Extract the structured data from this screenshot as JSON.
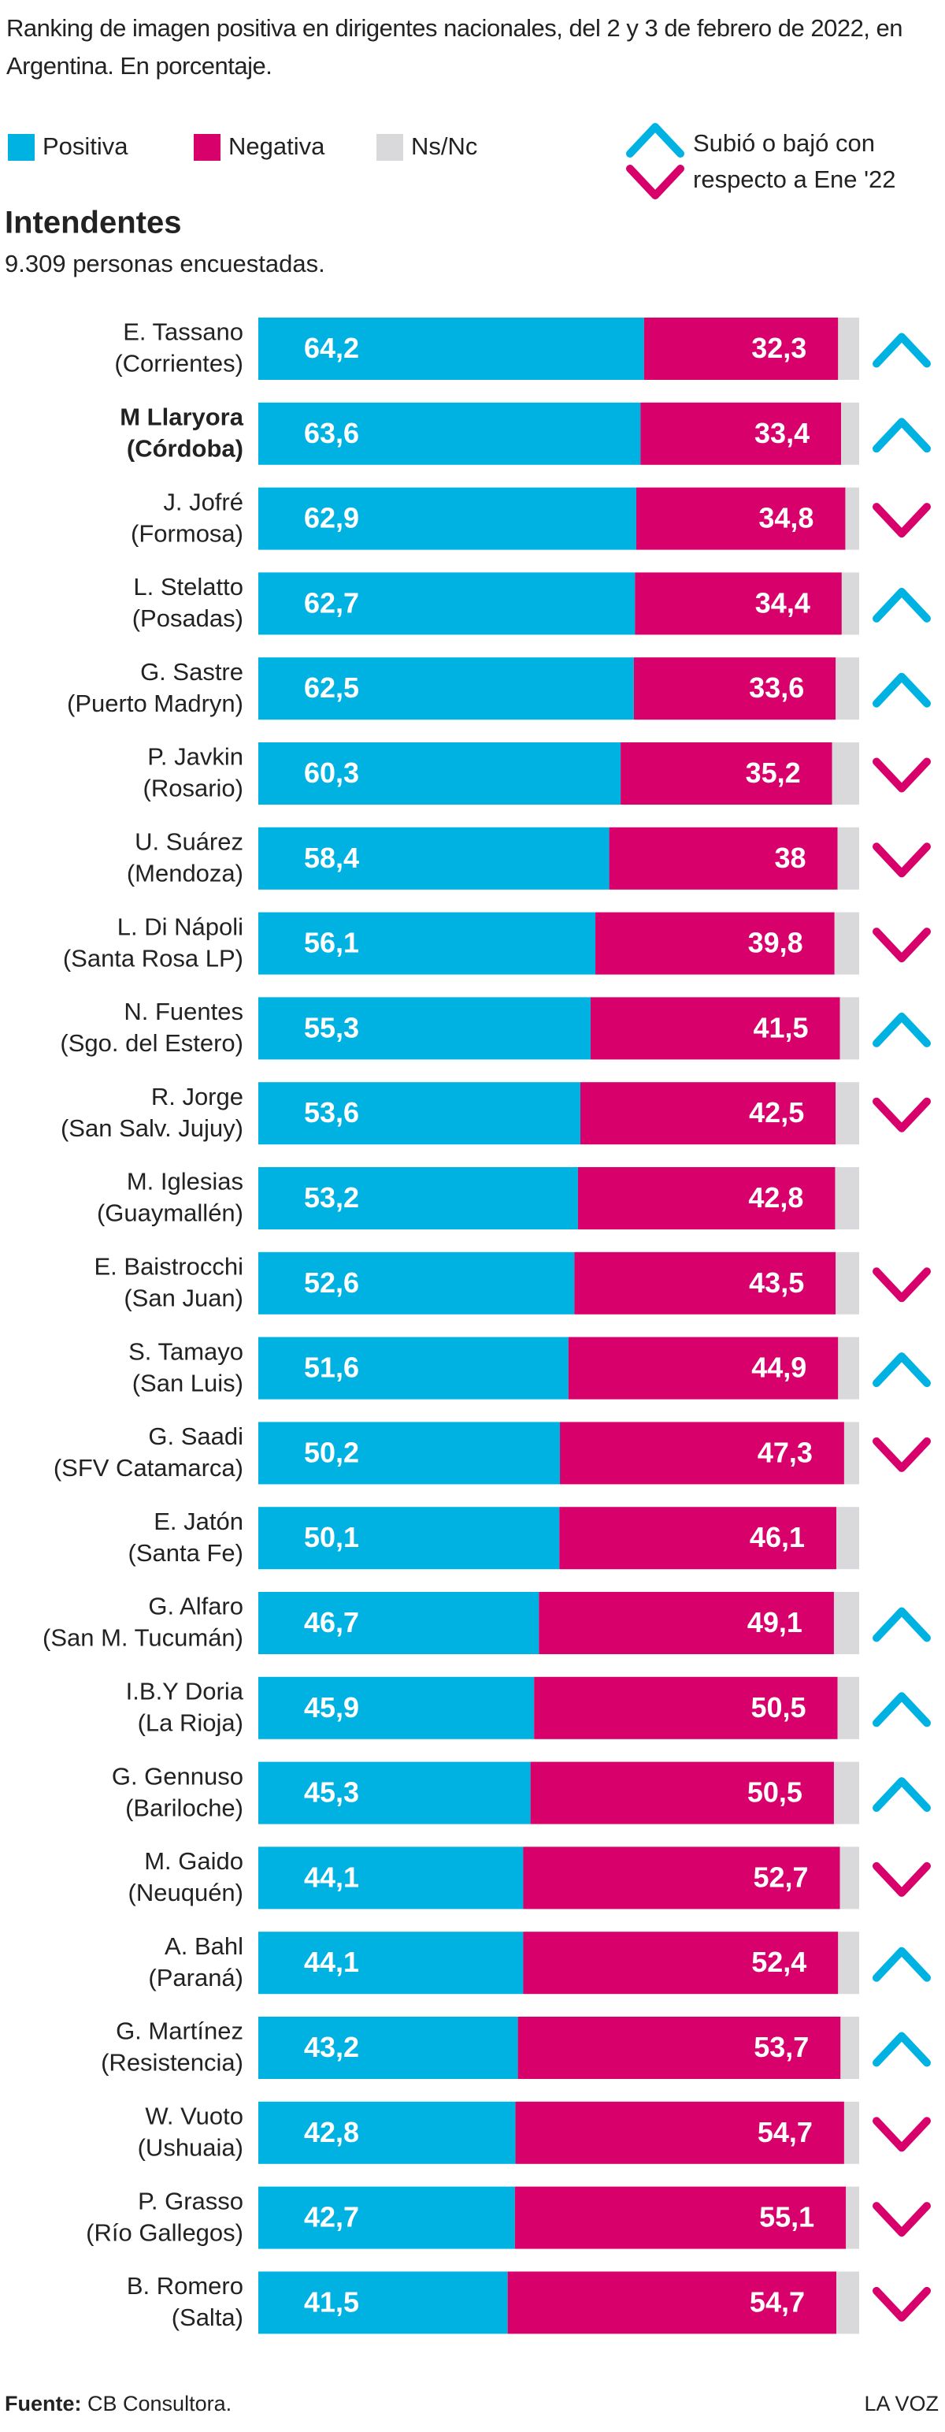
{
  "chart_data": {
    "type": "stacked-bar-horizontal",
    "title": "Ranking de imagen positiva en dirigentes nacionales, del 2 y 3 de febrero de 2022, en Argentina. En porcentaje.",
    "section": "Intendentes",
    "subtitle": "9.309 personas encuestadas.",
    "categories": [
      [
        "E. Tassano",
        "(Corrientes)"
      ],
      [
        "M Llaryora",
        "(Córdoba)"
      ],
      [
        "J. Jofré",
        "(Formosa)"
      ],
      [
        "L. Stelatto",
        "(Posadas)"
      ],
      [
        "G. Sastre",
        "(Puerto Madryn)"
      ],
      [
        "P. Javkin",
        "(Rosario)"
      ],
      [
        "U. Suárez",
        "(Mendoza)"
      ],
      [
        "L. Di Nápoli",
        "(Santa Rosa LP)"
      ],
      [
        "N. Fuentes",
        "(Sgo. del Estero)"
      ],
      [
        "R. Jorge",
        "(San Salv. Jujuy)"
      ],
      [
        "M. Iglesias",
        "(Guaymallén)"
      ],
      [
        "E. Baistrocchi",
        "(San Juan)"
      ],
      [
        "S. Tamayo",
        "(San Luis)"
      ],
      [
        "G. Saadi",
        "(SFV Catamarca)"
      ],
      [
        "E. Jatón",
        "(Santa Fe)"
      ],
      [
        "G. Alfaro",
        "(San M. Tucumán)"
      ],
      [
        "I.B.Y Doria",
        "(La Rioja)"
      ],
      [
        "G. Gennuso",
        "(Bariloche)"
      ],
      [
        "M. Gaido",
        "(Neuquén)"
      ],
      [
        "A. Bahl",
        "(Paraná)"
      ],
      [
        "G. Martínez",
        "(Resistencia)"
      ],
      [
        "W. Vuoto",
        "(Ushuaia)"
      ],
      [
        "P. Grasso",
        "(Río Gallegos)"
      ],
      [
        "B. Romero",
        "(Salta)"
      ]
    ],
    "bold_index": 1,
    "xlim": [
      0,
      100
    ],
    "series": [
      {
        "name": "Positiva",
        "color": "#00b2e2",
        "values": [
          64.2,
          63.6,
          62.9,
          62.7,
          62.5,
          60.3,
          58.4,
          56.1,
          55.3,
          53.6,
          53.2,
          52.6,
          51.6,
          50.2,
          50.1,
          46.7,
          45.9,
          45.3,
          44.1,
          44.1,
          43.2,
          42.8,
          42.7,
          41.5
        ],
        "value_labels": [
          "64,2",
          "63,6",
          "62,9",
          "62,7",
          "62,5",
          "60,3",
          "58,4",
          "56,1",
          "55,3",
          "53,6",
          "53,2",
          "52,6",
          "51,6",
          "50,2",
          "50,1",
          "46,7",
          "45,9",
          "45,3",
          "44,1",
          "44,1",
          "43,2",
          "42,8",
          "42,7",
          "41,5"
        ]
      },
      {
        "name": "Negativa",
        "color": "#d8006b",
        "values": [
          32.3,
          33.4,
          34.8,
          34.4,
          33.6,
          35.2,
          38,
          39.8,
          41.5,
          42.5,
          42.8,
          43.5,
          44.9,
          47.3,
          46.1,
          49.1,
          50.5,
          50.5,
          52.7,
          52.4,
          53.7,
          54.7,
          55.1,
          54.7
        ],
        "value_labels": [
          "32,3",
          "33,4",
          "34,8",
          "34,4",
          "33,6",
          "35,2",
          "38",
          "39,8",
          "41,5",
          "42,5",
          "42,8",
          "43,5",
          "44,9",
          "47,3",
          "46,1",
          "49,1",
          "50,5",
          "50,5",
          "52,7",
          "52,4",
          "53,7",
          "54,7",
          "55,1",
          "54,7"
        ]
      },
      {
        "name": "Ns/Nc",
        "color": "#d9d9db",
        "values": [
          3.5,
          3.0,
          2.3,
          2.9,
          3.9,
          4.5,
          3.6,
          4.1,
          3.2,
          3.9,
          4.0,
          3.9,
          3.5,
          2.5,
          3.8,
          4.2,
          3.6,
          4.2,
          3.2,
          3.5,
          3.1,
          2.5,
          2.2,
          3.8
        ]
      }
    ],
    "trend": [
      "up",
      "up",
      "down",
      "up",
      "up",
      "down",
      "down",
      "down",
      "up",
      "down",
      null,
      "down",
      "up",
      "down",
      null,
      "up",
      "up",
      "up",
      "down",
      "up",
      "up",
      "down",
      "down",
      "down"
    ],
    "trend_legend": [
      "Subió o bajó con",
      "respecto a Ene '22"
    ],
    "trend_colors": {
      "up": "#00b2e2",
      "down": "#d8006b"
    },
    "source_label": "Fuente:",
    "source": "CB Consultora.",
    "brand": "LA VOZ"
  }
}
